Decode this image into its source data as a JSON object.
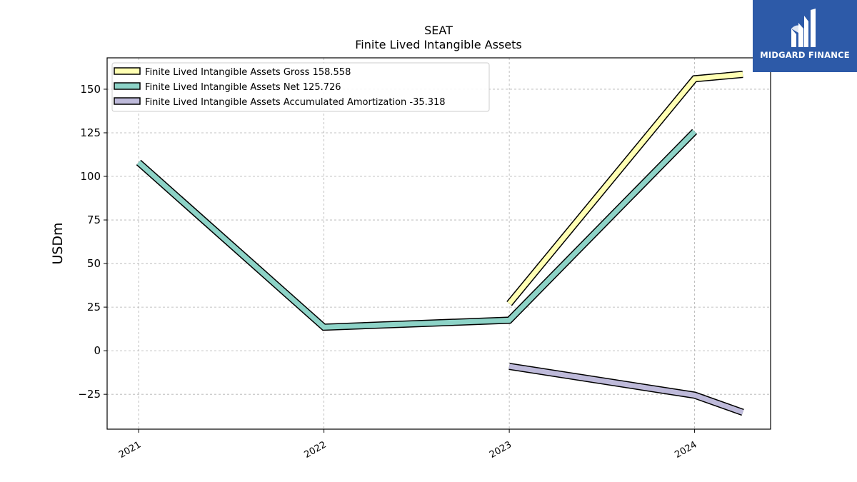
{
  "chart_data": {
    "type": "line",
    "title": "SEAT",
    "subtitle": "Finite Lived Intangible Assets",
    "ylabel": "USDm",
    "xlabel": "",
    "ylim": [
      -45,
      168
    ],
    "xlim": [
      2020.83,
      2024.41
    ],
    "x_ticks": [
      2021,
      2022,
      2023,
      2024
    ],
    "x_tick_labels": [
      "2021",
      "2022",
      "2023",
      "2024"
    ],
    "y_ticks": [
      -25,
      0,
      25,
      50,
      75,
      100,
      125,
      150
    ],
    "y_tick_labels": [
      "−25",
      "0",
      "25",
      "50",
      "75",
      "100",
      "125",
      "150"
    ],
    "grid": true,
    "legend_position": "top-left",
    "series": [
      {
        "name": "Finite Lived Intangible Assets Gross",
        "legend_value": "158.558",
        "color": "#ffffb3",
        "points": [
          [
            2023.0,
            27.0
          ],
          [
            2024.0,
            156.0
          ],
          [
            2024.26,
            158.558
          ]
        ]
      },
      {
        "name": "Finite Lived Intangible Assets Net",
        "legend_value": "125.726",
        "color": "#8dd3c7",
        "points": [
          [
            2021.0,
            108.0
          ],
          [
            2022.0,
            13.5
          ],
          [
            2023.0,
            17.5
          ],
          [
            2024.0,
            125.726
          ]
        ]
      },
      {
        "name": "Finite Lived Intangible Assets Accumulated Amortization",
        "legend_value": "-35.318",
        "color": "#bebada",
        "points": [
          [
            2023.0,
            -9.0
          ],
          [
            2024.0,
            -25.5
          ],
          [
            2024.26,
            -35.318
          ]
        ]
      }
    ]
  },
  "logo": {
    "text": "MIDGARD FINANCE",
    "icon": "midgard-logo-icon",
    "color": "#2d5aa8"
  }
}
